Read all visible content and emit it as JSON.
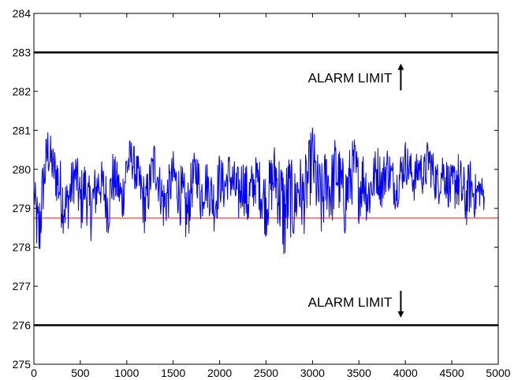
{
  "chart_data": {
    "type": "line",
    "title": "",
    "xlabel": "",
    "ylabel": "",
    "xlim": [
      0,
      5000
    ],
    "ylim": [
      275,
      284
    ],
    "x_ticks": [
      0,
      500,
      1000,
      1500,
      2000,
      2500,
      3000,
      3500,
      4000,
      4500,
      5000
    ],
    "y_ticks": [
      275,
      276,
      277,
      278,
      279,
      280,
      281,
      282,
      283,
      284
    ],
    "grid": false,
    "series": [
      {
        "color": "#0000ff",
        "x": [
          0,
          50,
          100,
          150,
          200,
          250,
          300,
          350,
          400,
          450,
          500,
          550,
          600,
          650,
          700,
          750,
          800,
          850,
          900,
          950,
          1000,
          1050,
          1100,
          1150,
          1200,
          1250,
          1300,
          1350,
          1400,
          1450,
          1500,
          1550,
          1600,
          1650,
          1700,
          1750,
          1800,
          1850,
          1900,
          1950,
          2000,
          2050,
          2100,
          2150,
          2200,
          2250,
          2300,
          2350,
          2400,
          2450,
          2500,
          2550,
          2600,
          2650,
          2700,
          2750,
          2800,
          2850,
          2900,
          2950,
          3000,
          3050,
          3100,
          3150,
          3200,
          3250,
          3300,
          3350,
          3400,
          3450,
          3500,
          3550,
          3600,
          3650,
          3700,
          3750,
          3800,
          3850,
          3900,
          3950,
          4000,
          4050,
          4100,
          4150,
          4200,
          4250,
          4300,
          4350,
          4400,
          4450,
          4500,
          4550,
          4600,
          4650,
          4700,
          4750,
          4800,
          4850
        ],
        "y": [
          279.4,
          278.2,
          279.6,
          280.5,
          280.1,
          279.8,
          279.3,
          279.0,
          279.5,
          279.9,
          279.1,
          279.6,
          278.9,
          279.3,
          279.7,
          279.5,
          279.0,
          279.8,
          279.6,
          279.2,
          280.1,
          280.3,
          279.9,
          279.5,
          279.0,
          279.7,
          280.2,
          279.6,
          279.1,
          279.4,
          279.9,
          279.5,
          279.2,
          278.8,
          279.6,
          280.0,
          279.3,
          279.7,
          279.4,
          279.1,
          279.8,
          279.5,
          279.9,
          279.6,
          279.3,
          279.7,
          279.2,
          279.5,
          279.8,
          279.4,
          279.1,
          279.6,
          279.9,
          279.3,
          278.8,
          279.4,
          279.0,
          279.6,
          279.2,
          279.7,
          280.3,
          279.5,
          279.1,
          279.8,
          279.4,
          280.0,
          279.6,
          279.2,
          279.7,
          280.1,
          279.5,
          279.8,
          279.3,
          279.7,
          280.0,
          279.6,
          280.1,
          279.8,
          279.5,
          279.9,
          280.2,
          280.0,
          279.7,
          280.1,
          279.8,
          280.3,
          279.9,
          279.6,
          280.0,
          279.7,
          279.4,
          279.8,
          279.5,
          279.2,
          279.6,
          279.3,
          279.5,
          279.3
        ],
        "noise": [
          0.4,
          1.2,
          0.8,
          0.7,
          0.6,
          0.8,
          0.9,
          0.8,
          0.7,
          0.6,
          0.9,
          0.7,
          0.9,
          0.8,
          0.6,
          0.7,
          0.8,
          0.7,
          0.6,
          0.7,
          0.7,
          0.5,
          0.6,
          0.7,
          0.8,
          0.6,
          0.7,
          0.6,
          0.8,
          0.7,
          0.6,
          0.7,
          0.9,
          0.9,
          0.7,
          0.6,
          0.8,
          0.6,
          0.7,
          0.8,
          0.7,
          0.6,
          0.6,
          0.7,
          0.8,
          0.7,
          0.9,
          0.7,
          0.6,
          0.8,
          0.9,
          0.8,
          0.9,
          1.2,
          1.4,
          1.1,
          1.0,
          0.9,
          1.0,
          0.9,
          1.0,
          1.0,
          1.1,
          0.9,
          1.0,
          1.0,
          0.9,
          1.0,
          0.9,
          0.8,
          0.9,
          0.8,
          0.9,
          0.7,
          0.7,
          0.7,
          0.6,
          0.6,
          0.6,
          0.6,
          0.6,
          0.5,
          0.6,
          0.5,
          0.6,
          0.6,
          0.6,
          0.6,
          0.6,
          0.6,
          0.7,
          0.8,
          0.8,
          0.8,
          0.7,
          0.6,
          0.5,
          0.4
        ]
      }
    ],
    "reference_lines": [
      {
        "y": 283,
        "color": "#000000"
      },
      {
        "y": 276,
        "color": "#000000"
      },
      {
        "y": 278.75,
        "color": "#e05a5a"
      }
    ],
    "annotations": [
      {
        "text": "ALARM LIMIT",
        "x": 3900,
        "y": 282.35,
        "arrow": "up"
      },
      {
        "text": "ALARM LIMIT",
        "x": 3900,
        "y": 276.6,
        "arrow": "down"
      }
    ]
  }
}
